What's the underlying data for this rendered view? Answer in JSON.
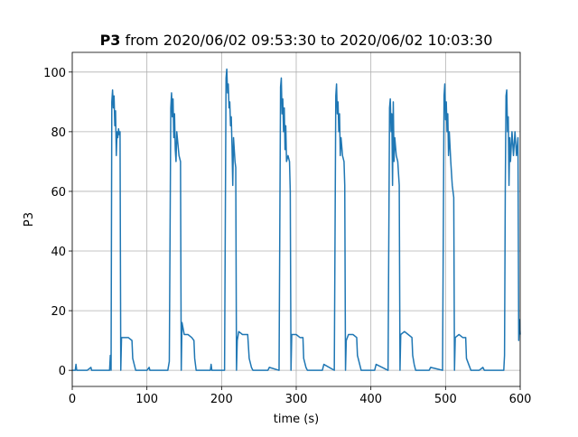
{
  "chart_data": {
    "type": "line",
    "title_bold": "P3",
    "title": "from 2020/06/02 09:53:30 to 2020/06/02 10:03:30",
    "xlabel": "time (s)",
    "ylabel": "P3",
    "xlim": [
      0,
      600
    ],
    "xticks": [
      0,
      100,
      200,
      300,
      400,
      500,
      600
    ],
    "ylim": [
      -5.4,
      106.6
    ],
    "yticks": [
      0,
      20,
      40,
      60,
      80,
      100
    ],
    "grid": true,
    "series": [
      {
        "color": "#1f77b4",
        "x": [
          0,
          4,
          5,
          6,
          20,
          25,
          26,
          50,
          51,
          52,
          53,
          54,
          55,
          56,
          57,
          58,
          59,
          60,
          61,
          62,
          63,
          64,
          65,
          66,
          70,
          75,
          80,
          81,
          83,
          85,
          100,
          103,
          104,
          128,
          130,
          132,
          133,
          134,
          135,
          136,
          137,
          138,
          139,
          140,
          143,
          145,
          146,
          147,
          150,
          155,
          160,
          163,
          164,
          166,
          185,
          186,
          187,
          204,
          206,
          207,
          208,
          209,
          210,
          211,
          212,
          213,
          214,
          215,
          216,
          218,
          219,
          220,
          221,
          223,
          228,
          235,
          237,
          240,
          242,
          262,
          264,
          277,
          279,
          280,
          281,
          282,
          283,
          284,
          285,
          286,
          287,
          289,
          291,
          292,
          293,
          294,
          300,
          305,
          309,
          310,
          313,
          315,
          335,
          337,
          351,
          353,
          354,
          355,
          356,
          357,
          358,
          359,
          360,
          362,
          364,
          365,
          366,
          367,
          370,
          376,
          381,
          382,
          385,
          387,
          405,
          407,
          423,
          425,
          426,
          427,
          428,
          429,
          430,
          431,
          432,
          434,
          436,
          438,
          439,
          440,
          445,
          450,
          455,
          456,
          458,
          460,
          478,
          480,
          496,
          498,
          499,
          500,
          501,
          502,
          503,
          504,
          505,
          507,
          509,
          511,
          512,
          513,
          518,
          523,
          527,
          528,
          531,
          534,
          545,
          550,
          552,
          578,
          579,
          580,
          581,
          582,
          583,
          584,
          585,
          586,
          587,
          589,
          591,
          593,
          595,
          597,
          598,
          599,
          600
        ],
        "values": [
          0,
          0,
          2,
          0,
          0,
          1,
          0,
          0,
          5,
          0,
          90,
          94,
          88,
          92,
          82,
          87,
          72,
          80,
          78,
          81,
          79,
          80,
          0,
          11,
          11,
          11,
          10,
          4,
          2,
          0,
          0,
          1,
          0,
          0,
          3,
          88,
          93,
          85,
          91,
          78,
          86,
          74,
          70,
          80,
          72,
          70,
          0,
          16,
          12,
          12,
          11,
          10,
          4,
          0,
          0,
          2,
          0,
          0,
          98,
          101,
          93,
          96,
          88,
          90,
          82,
          85,
          75,
          62,
          78,
          70,
          68,
          0,
          10,
          13,
          12,
          12,
          4,
          1,
          0,
          0,
          1,
          0,
          95,
          98,
          86,
          91,
          80,
          88,
          74,
          82,
          70,
          72,
          70,
          60,
          0,
          12,
          12,
          11,
          11,
          4,
          1,
          0,
          0,
          2,
          0,
          92,
          96,
          86,
          90,
          80,
          86,
          72,
          78,
          72,
          70,
          62,
          0,
          10,
          12,
          12,
          11,
          5,
          2,
          0,
          0,
          2,
          0,
          88,
          91,
          80,
          86,
          62,
          90,
          70,
          78,
          72,
          70,
          62,
          0,
          12,
          13,
          12,
          11,
          5,
          2,
          0,
          0,
          1,
          0,
          92,
          96,
          84,
          90,
          80,
          86,
          72,
          80,
          70,
          62,
          58,
          0,
          11,
          12,
          11,
          11,
          4,
          2,
          0,
          0,
          1,
          0,
          0,
          5,
          60,
          92,
          94,
          80,
          85,
          62,
          78,
          70,
          80,
          72,
          80,
          72,
          78,
          10,
          17,
          12
        ]
      }
    ]
  }
}
